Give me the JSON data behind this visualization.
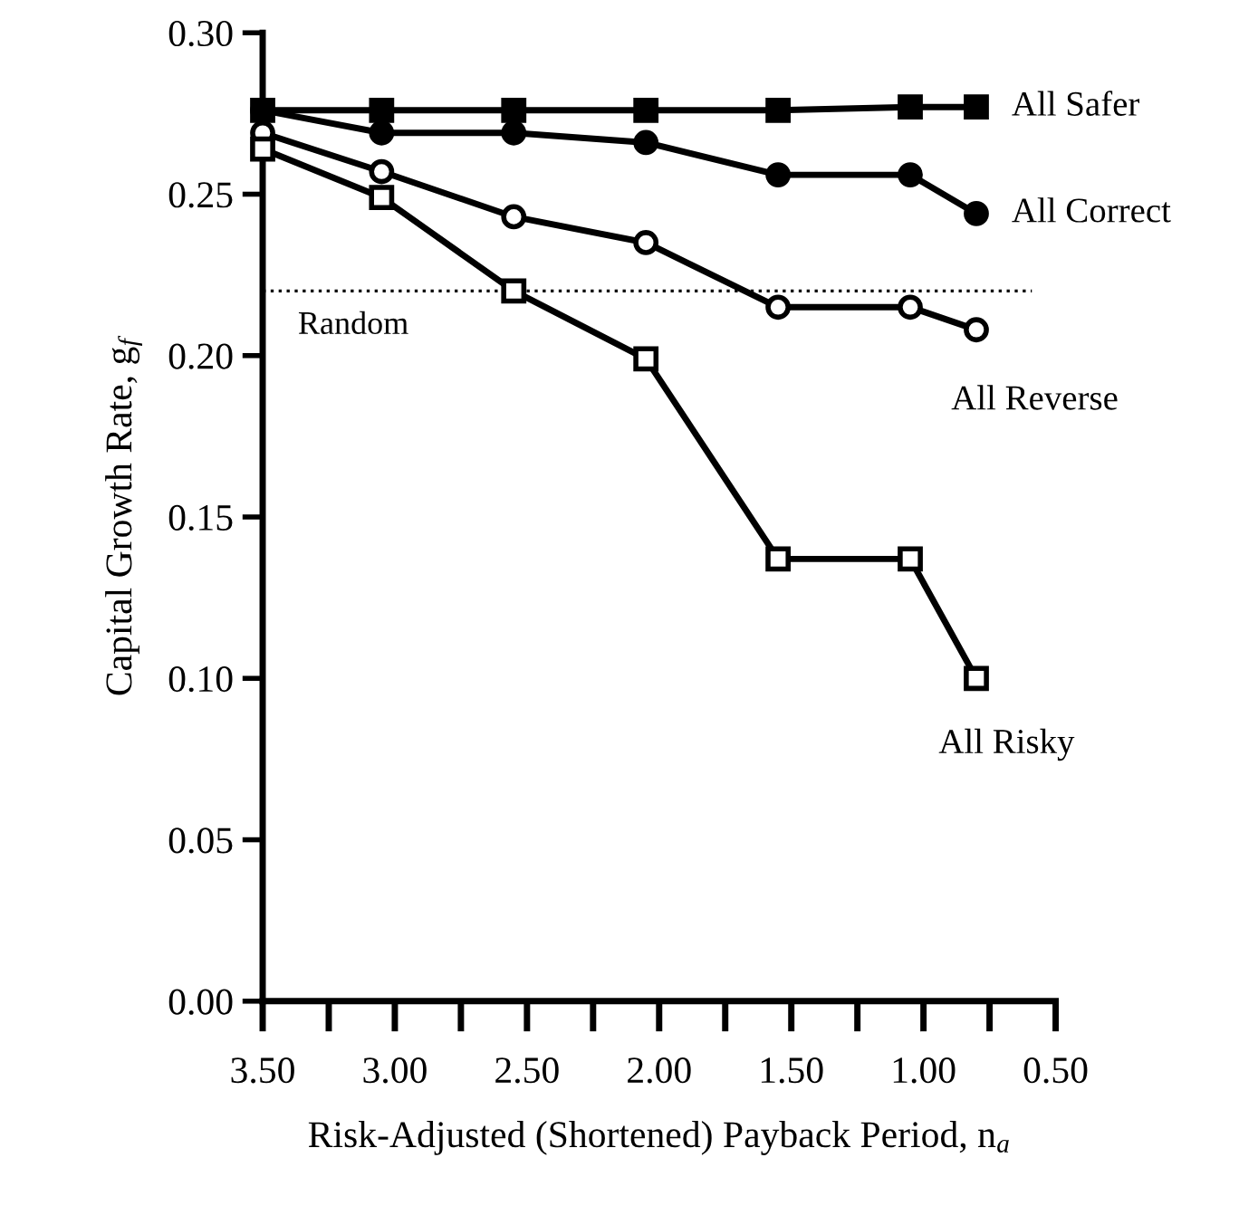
{
  "chart_data": {
    "type": "line",
    "xlabel": "Risk-Adjusted (Shortened) Payback Period, n$_{a}$",
    "ylabel": "Capital Growth Rate, g$_{f}$",
    "x": [
      3.5,
      3.05,
      2.55,
      2.05,
      1.55,
      1.05,
      0.8
    ],
    "series": [
      {
        "name": "All Safer",
        "color": "#000000",
        "marker": "square",
        "values": [
          0.276,
          0.276,
          0.276,
          0.276,
          0.276,
          0.277,
          0.277
        ]
      },
      {
        "name": "All Correct",
        "color": "#000000",
        "marker": "circle",
        "values": [
          0.276,
          0.269,
          0.269,
          0.266,
          0.256,
          0.256,
          0.244
        ]
      },
      {
        "name": "All Reverse",
        "color": "#000000",
        "marker": "circle",
        "values": [
          0.269,
          0.257,
          0.243,
          0.235,
          0.215,
          0.215,
          0.208
        ]
      },
      {
        "name": "All Risky",
        "color": "#000000",
        "marker": "square",
        "values": [
          0.264,
          0.249,
          0.22,
          0.199,
          0.137,
          0.137,
          0.1
        ]
      }
    ],
    "ref_lines": [
      {
        "axis": "y",
        "value": 0.22,
        "label": "Random",
        "color": "#000000",
        "line_style": "dotted"
      }
    ],
    "xlim": [
      3.5,
      0.5
    ],
    "ylim": [
      0,
      0.3
    ],
    "xticks": [
      {
        "value": 3.5,
        "label": "3.50"
      },
      {
        "value": 3.0,
        "label": "3.00"
      },
      {
        "value": 2.5,
        "label": "2.50"
      },
      {
        "value": 2.0,
        "label": "2.00"
      },
      {
        "value": 1.5,
        "label": "1.50"
      },
      {
        "value": 1.0,
        "label": "1.00"
      },
      {
        "value": 0.5,
        "label": "0.50"
      }
    ],
    "yticks": [
      {
        "value": 0,
        "label": "0.00"
      },
      {
        "value": 0.05,
        "label": "0.05"
      },
      {
        "value": 0.1,
        "label": "0.10"
      },
      {
        "value": 0.15,
        "label": "0.15"
      },
      {
        "value": 0.2,
        "label": "0.20"
      },
      {
        "value": 0.25,
        "label": "0.25"
      },
      {
        "value": 0.3,
        "label": "0.30"
      }
    ],
    "grid": false,
    "legend": false,
    "line_style": "solid"
  }
}
